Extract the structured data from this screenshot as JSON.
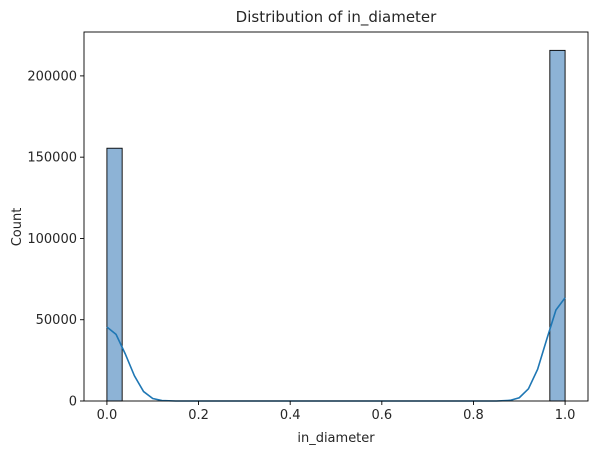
{
  "chart_data": {
    "type": "bar",
    "title": "Distribution of in_diameter",
    "xlabel": "in_diameter",
    "ylabel": "Count",
    "xlim": [
      -0.05,
      1.05
    ],
    "ylim": [
      0,
      227000
    ],
    "bin_width": 0.0333,
    "bars": [
      {
        "x": 0.0,
        "value": 155500
      },
      {
        "x": 0.9667,
        "value": 215700
      }
    ],
    "x_ticks": [
      {
        "value": 0.0,
        "label": "0.0"
      },
      {
        "value": 0.2,
        "label": "0.2"
      },
      {
        "value": 0.4,
        "label": "0.4"
      },
      {
        "value": 0.6,
        "label": "0.6"
      },
      {
        "value": 0.8,
        "label": "0.8"
      },
      {
        "value": 1.0,
        "label": "1.0"
      }
    ],
    "y_ticks": [
      {
        "value": 0,
        "label": "0"
      },
      {
        "value": 50000,
        "label": "50000"
      },
      {
        "value": 100000,
        "label": "100000"
      },
      {
        "value": 150000,
        "label": "150000"
      },
      {
        "value": 200000,
        "label": "200000"
      }
    ],
    "kde": {
      "x": [
        0.0,
        0.02,
        0.04,
        0.06,
        0.08,
        0.1,
        0.12,
        0.15,
        0.2,
        0.8,
        0.85,
        0.88,
        0.9,
        0.92,
        0.94,
        0.96,
        0.98,
        1.0
      ],
      "y": [
        45500,
        41000,
        29000,
        15500,
        5800,
        1500,
        300,
        0,
        0,
        0,
        0,
        400,
        2000,
        7500,
        19500,
        38000,
        56000,
        63500
      ]
    },
    "grid": false,
    "colors": {
      "bar_fill": "#8db3d6",
      "bar_edge": "#000000",
      "kde_line": "#1f77b4",
      "axis": "#000000"
    }
  }
}
